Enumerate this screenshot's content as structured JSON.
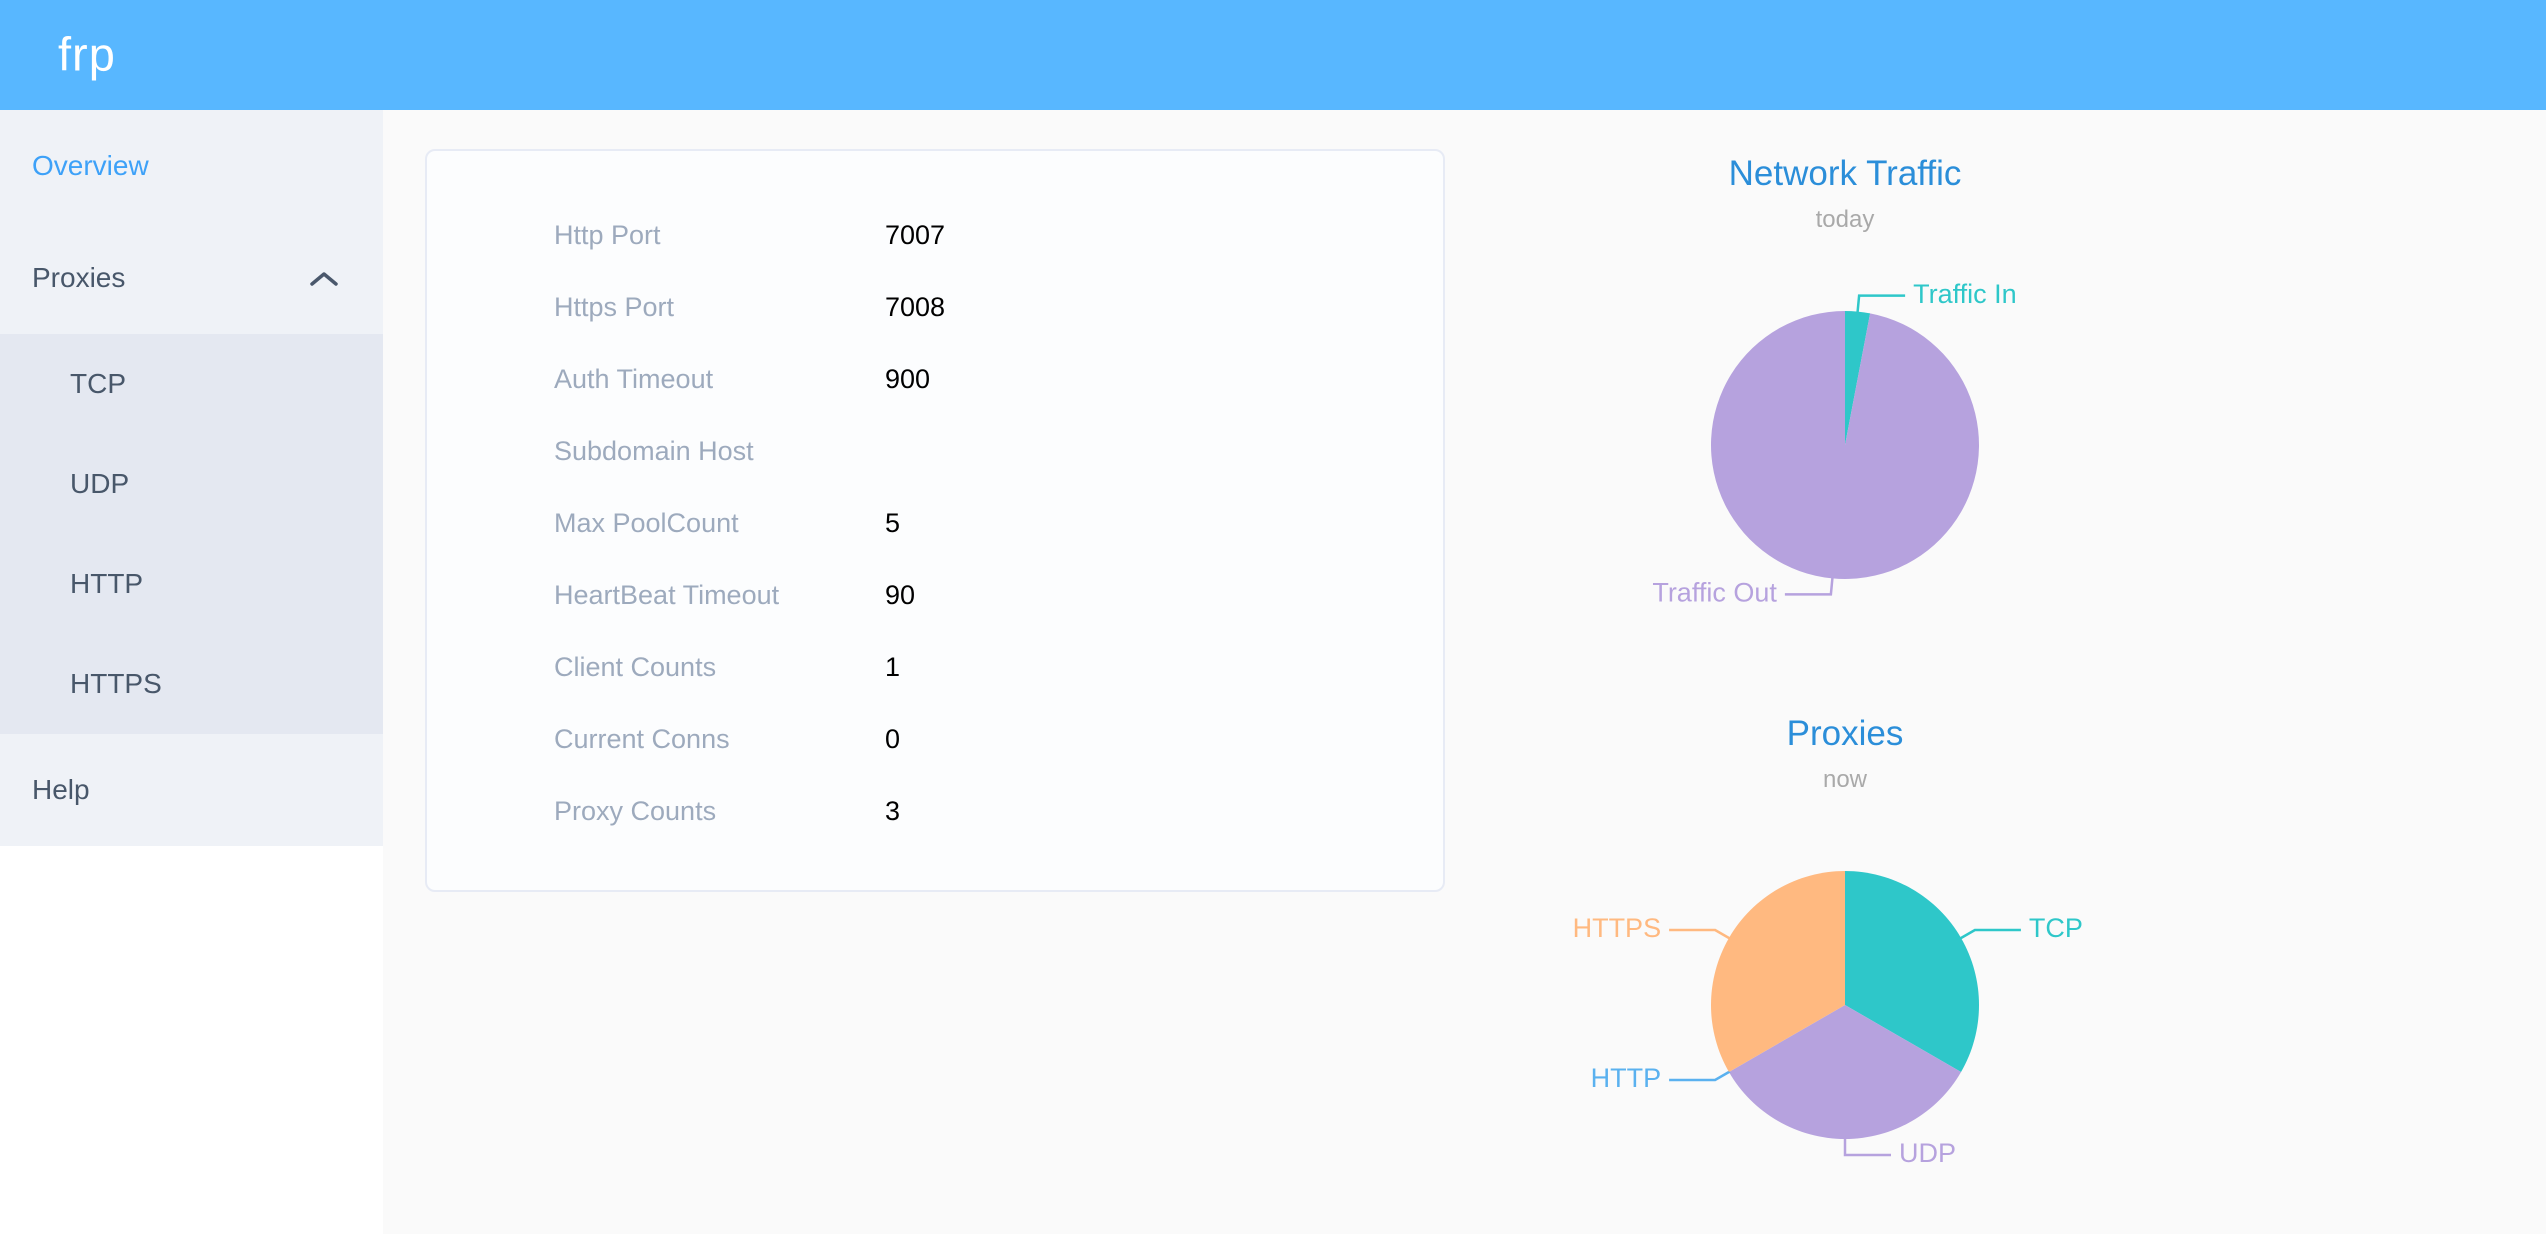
{
  "header": {
    "logo": "frp"
  },
  "sidebar": {
    "overview_label": "Overview",
    "proxies_label": "Proxies",
    "proxies_expanded": true,
    "proxy_types": [
      "TCP",
      "UDP",
      "HTTP",
      "HTTPS"
    ],
    "help_label": "Help"
  },
  "overview": {
    "rows": [
      {
        "label": "Http Port",
        "value": "7007"
      },
      {
        "label": "Https Port",
        "value": "7008"
      },
      {
        "label": "Auth Timeout",
        "value": "900"
      },
      {
        "label": "Subdomain Host",
        "value": ""
      },
      {
        "label": "Max PoolCount",
        "value": "5"
      },
      {
        "label": "HeartBeat Timeout",
        "value": "90"
      },
      {
        "label": "Client Counts",
        "value": "1"
      },
      {
        "label": "Current Conns",
        "value": "0"
      },
      {
        "label": "Proxy Counts",
        "value": "3"
      }
    ]
  },
  "chart_data": [
    {
      "type": "pie",
      "title": "Network Traffic",
      "subtitle": "today",
      "legend_position": "none",
      "value_unit": "percent (estimated from arc angles, no numeric labels shown)",
      "start_angle_deg": 0,
      "direction": "clockwise-from-12-o-clock",
      "series": [
        {
          "name": "Traffic In",
          "value": 3,
          "color": "#2ec7c9"
        },
        {
          "name": "Traffic Out",
          "value": 97,
          "color": "#b6a2de"
        }
      ]
    },
    {
      "type": "pie",
      "title": "Proxies",
      "subtitle": "now",
      "legend_position": "none",
      "value_unit": "proxy count (three equal slices; HTTP slice is zero-width but labeled)",
      "start_angle_deg": 0,
      "direction": "clockwise-from-12-o-clock",
      "series": [
        {
          "name": "TCP",
          "value": 1,
          "color": "#2ec7c9"
        },
        {
          "name": "UDP",
          "value": 1,
          "color": "#b6a2de"
        },
        {
          "name": "HTTP",
          "value": 0,
          "color": "#5ab1ef"
        },
        {
          "name": "HTTPS",
          "value": 1,
          "color": "#ffb980"
        }
      ]
    }
  ],
  "colors": {
    "header_bg": "#58b7ff",
    "sidebar_bg": "#eff2f7",
    "submenu_bg": "#e4e8f1",
    "menu_text": "#48576a",
    "menu_active_text": "#3da1f8",
    "chart_title_blue": "#2b8ed9",
    "chart_subtitle_gray": "#a9a9a9",
    "card_label_gray": "#9daabd",
    "card_border": "#e7ebf5",
    "page_bg": "#fafafa"
  }
}
